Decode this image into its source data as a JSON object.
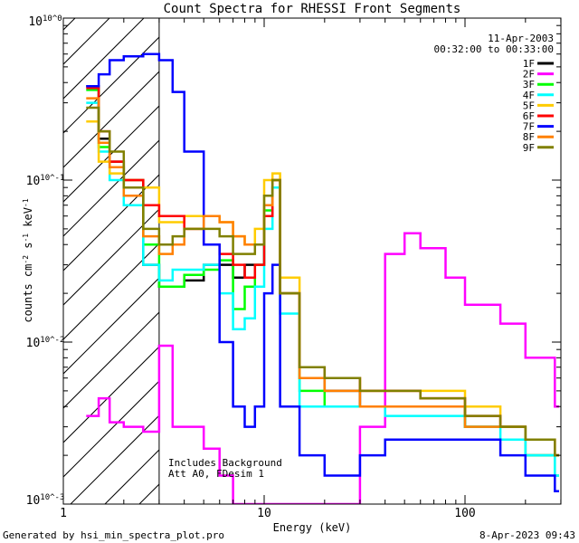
{
  "chart_data": {
    "type": "line",
    "title": "Count Spectra for RHESSI Front Segments",
    "xlabel": "Energy (keV)",
    "ylabel": "counts cm^-2 s^-1 keV^-1",
    "xscale": "log",
    "yscale": "log",
    "xlim": [
      1,
      300
    ],
    "ylim": [
      0.001,
      1
    ],
    "x_ticks": [
      "1",
      "10",
      "100"
    ],
    "y_ticks": [
      "10^-3",
      "10^-2",
      "10^-1",
      "10^0"
    ],
    "date": "11-Apr-2003",
    "time_range": "00:32:00 to 00:33:00",
    "annotation_lines": [
      "Includes Background",
      "Att A0, FDesim 1"
    ],
    "shaded_region_kev": [
      1,
      3
    ],
    "footer_left": "Generated by hsi_min_spectra_plot.pro",
    "footer_right": "8-Apr-2023 09:43",
    "series": [
      {
        "name": "1F",
        "color": "#000000",
        "x": [
          1.3,
          1.5,
          1.7,
          2,
          2.5,
          3,
          3.5,
          4,
          5,
          6,
          7,
          8,
          9,
          10,
          11,
          12,
          15,
          20,
          30,
          40,
          60,
          100,
          150,
          200,
          280
        ],
        "values": [
          0.38,
          0.18,
          0.13,
          0.1,
          0.03,
          0.022,
          0.022,
          0.024,
          0.03,
          0.03,
          0.025,
          0.03,
          0.03,
          0.06,
          0.09,
          0.02,
          0.006,
          0.005,
          0.004,
          0.004,
          0.004,
          0.003,
          0.003,
          0.002,
          0.002
        ]
      },
      {
        "name": "2F",
        "color": "#ff00ff",
        "x": [
          1.3,
          1.5,
          1.7,
          2,
          2.5,
          3,
          3.5,
          4,
          5,
          6,
          7,
          8,
          9,
          10,
          11,
          12,
          15,
          20,
          30,
          40,
          50,
          60,
          80,
          100,
          150,
          200,
          280
        ],
        "values": [
          0.0035,
          0.0045,
          0.0032,
          0.003,
          0.0028,
          0.0095,
          0.003,
          0.003,
          0.0022,
          0.0015,
          0.001,
          0.001,
          0.001,
          0.001,
          0.001,
          0.001,
          0.001,
          0.001,
          0.003,
          0.035,
          0.047,
          0.038,
          0.025,
          0.017,
          0.013,
          0.008,
          0.004
        ]
      },
      {
        "name": "3F",
        "color": "#00ff00",
        "x": [
          1.3,
          1.5,
          1.7,
          2,
          2.5,
          3,
          3.5,
          4,
          5,
          6,
          7,
          8,
          9,
          10,
          11,
          12,
          15,
          20,
          30,
          40,
          60,
          100,
          150,
          200,
          280
        ],
        "values": [
          0.36,
          0.16,
          0.12,
          0.09,
          0.04,
          0.022,
          0.022,
          0.026,
          0.028,
          0.032,
          0.016,
          0.022,
          0.03,
          0.065,
          0.1,
          0.02,
          0.005,
          0.004,
          0.004,
          0.004,
          0.004,
          0.003,
          0.003,
          0.002,
          0.0015
        ]
      },
      {
        "name": "4F",
        "color": "#00ffff",
        "x": [
          1.3,
          1.5,
          1.7,
          2,
          2.5,
          3,
          3.5,
          4,
          5,
          6,
          7,
          8,
          9,
          10,
          11,
          12,
          15,
          20,
          30,
          40,
          60,
          100,
          150,
          200,
          280
        ],
        "values": [
          0.3,
          0.15,
          0.1,
          0.07,
          0.03,
          0.024,
          0.028,
          0.028,
          0.03,
          0.02,
          0.012,
          0.014,
          0.022,
          0.05,
          0.09,
          0.015,
          0.004,
          0.004,
          0.004,
          0.0035,
          0.0035,
          0.003,
          0.0025,
          0.002,
          0.0015
        ]
      },
      {
        "name": "5F",
        "color": "#ffcc00",
        "x": [
          1.3,
          1.5,
          1.7,
          2,
          2.5,
          3,
          3.5,
          4,
          5,
          6,
          7,
          8,
          9,
          10,
          11,
          12,
          15,
          20,
          30,
          40,
          60,
          100,
          150,
          200,
          280
        ],
        "values": [
          0.23,
          0.13,
          0.11,
          0.1,
          0.09,
          0.055,
          0.055,
          0.06,
          0.06,
          0.055,
          0.045,
          0.04,
          0.05,
          0.1,
          0.11,
          0.025,
          0.006,
          0.006,
          0.005,
          0.005,
          0.005,
          0.004,
          0.003,
          0.0025,
          0.002
        ]
      },
      {
        "name": "6F",
        "color": "#ff0000",
        "x": [
          1.3,
          1.5,
          1.7,
          2,
          2.5,
          3,
          3.5,
          4,
          5,
          6,
          7,
          8,
          9,
          10,
          11,
          12,
          15,
          20,
          30,
          40,
          60,
          100,
          150,
          200,
          280
        ],
        "values": [
          0.37,
          0.2,
          0.13,
          0.1,
          0.07,
          0.06,
          0.06,
          0.05,
          0.04,
          0.035,
          0.03,
          0.025,
          0.03,
          0.06,
          0.1,
          0.02,
          0.007,
          0.006,
          0.005,
          0.005,
          0.0045,
          0.0035,
          0.003,
          0.0025,
          0.002
        ]
      },
      {
        "name": "7F",
        "color": "#0000ff",
        "x": [
          1.3,
          1.5,
          1.7,
          2,
          2.5,
          3,
          3.5,
          4,
          5,
          6,
          7,
          8,
          9,
          10,
          11,
          12,
          15,
          20,
          30,
          40,
          60,
          100,
          150,
          200,
          280
        ],
        "values": [
          0.38,
          0.45,
          0.55,
          0.58,
          0.6,
          0.55,
          0.35,
          0.15,
          0.04,
          0.01,
          0.004,
          0.003,
          0.004,
          0.02,
          0.03,
          0.004,
          0.002,
          0.0015,
          0.002,
          0.0025,
          0.0025,
          0.0025,
          0.002,
          0.0015,
          0.0012
        ]
      },
      {
        "name": "8F",
        "color": "#ff8000",
        "x": [
          1.3,
          1.5,
          1.7,
          2,
          2.5,
          3,
          3.5,
          4,
          5,
          6,
          7,
          8,
          9,
          10,
          11,
          12,
          15,
          20,
          30,
          40,
          60,
          100,
          150,
          200,
          280
        ],
        "values": [
          0.32,
          0.17,
          0.12,
          0.08,
          0.045,
          0.035,
          0.04,
          0.05,
          0.06,
          0.055,
          0.045,
          0.04,
          0.04,
          0.07,
          0.1,
          0.02,
          0.006,
          0.005,
          0.004,
          0.004,
          0.004,
          0.003,
          0.003,
          0.0025,
          0.002
        ]
      },
      {
        "name": "9F",
        "color": "#808000",
        "x": [
          1.3,
          1.5,
          1.7,
          2,
          2.5,
          3,
          3.5,
          4,
          5,
          6,
          7,
          8,
          9,
          10,
          11,
          12,
          15,
          20,
          30,
          40,
          60,
          100,
          150,
          200,
          280
        ],
        "values": [
          0.28,
          0.2,
          0.15,
          0.09,
          0.05,
          0.04,
          0.045,
          0.05,
          0.05,
          0.045,
          0.035,
          0.035,
          0.04,
          0.08,
          0.1,
          0.02,
          0.007,
          0.006,
          0.005,
          0.005,
          0.0045,
          0.0035,
          0.003,
          0.0025,
          0.002
        ]
      }
    ]
  }
}
